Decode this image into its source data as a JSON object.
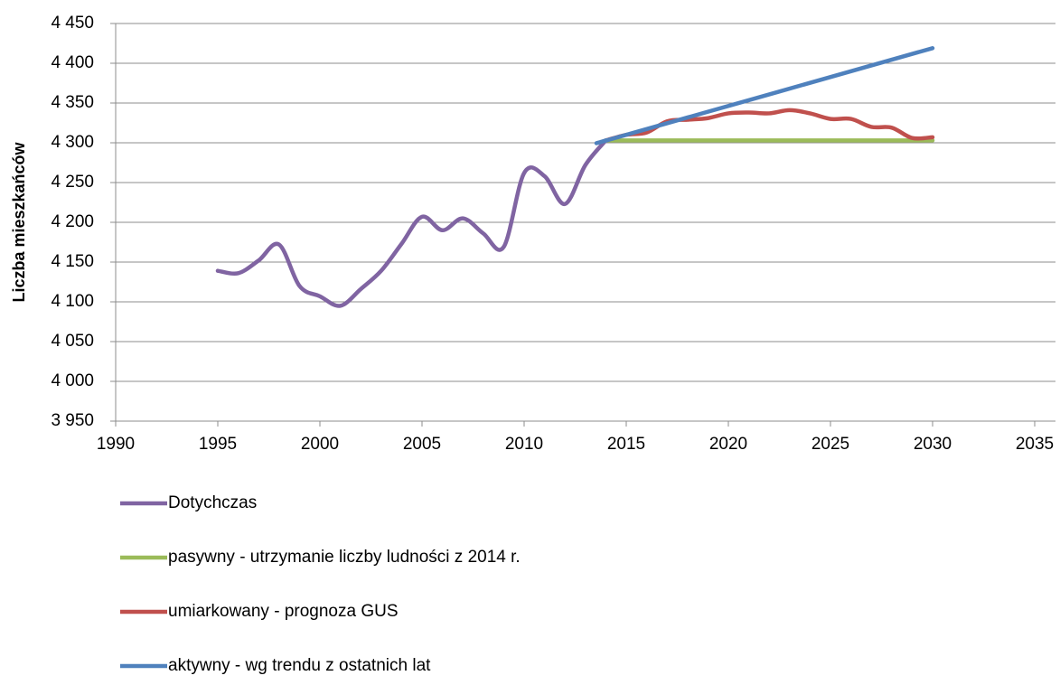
{
  "chart_data": {
    "type": "line",
    "y_label": "Liczba mieszkańców",
    "xlim": [
      1990,
      2035
    ],
    "xticks": [
      1990,
      1995,
      2000,
      2005,
      2010,
      2015,
      2020,
      2025,
      2030,
      2035
    ],
    "ylim": [
      3950,
      4450
    ],
    "yticks": [
      {
        "value": 3950,
        "label": "3 950"
      },
      {
        "value": 4000,
        "label": "4 000"
      },
      {
        "value": 4050,
        "label": "4 050"
      },
      {
        "value": 4100,
        "label": "4 100"
      },
      {
        "value": 4150,
        "label": "4 150"
      },
      {
        "value": 4200,
        "label": "4 200"
      },
      {
        "value": 4250,
        "label": "4 250"
      },
      {
        "value": 4300,
        "label": "4 300"
      },
      {
        "value": 4350,
        "label": "4 350"
      },
      {
        "value": 4400,
        "label": "4 400"
      },
      {
        "value": 4450,
        "label": "4 450"
      }
    ],
    "grid": true,
    "legend": "bottom",
    "series": [
      {
        "name": "Dotychczas",
        "color": "#8064a2",
        "x": [
          1995,
          1996,
          1997,
          1998,
          1999,
          2000,
          2001,
          2002,
          2003,
          2004,
          2005,
          2006,
          2007,
          2008,
          2009,
          2010,
          2011,
          2012,
          2013,
          2014
        ],
        "values": [
          4139,
          4136,
          4152,
          4172,
          4120,
          4107,
          4095,
          4116,
          4139,
          4173,
          4207,
          4190,
          4205,
          4186,
          4169,
          4262,
          4258,
          4223,
          4272,
          4303
        ]
      },
      {
        "name": "pasywny - utrzymanie liczby ludności z 2014 r.",
        "color": "#9bbb59",
        "x": [
          2014,
          2030
        ],
        "values": [
          4303,
          4303
        ]
      },
      {
        "name": "umiarkowany - prognoza GUS",
        "color": "#c0504d",
        "x": [
          2014,
          2015,
          2016,
          2017,
          2018,
          2019,
          2020,
          2021,
          2022,
          2023,
          2024,
          2025,
          2026,
          2027,
          2028,
          2029,
          2030
        ],
        "values": [
          4303,
          4310,
          4313,
          4327,
          4329,
          4331,
          4337,
          4338,
          4337,
          4341,
          4337,
          4330,
          4330,
          4320,
          4319,
          4306,
          4307
        ]
      },
      {
        "name": "aktywny - wg trendu z ostatnich lat",
        "color": "#4f81bd",
        "x": [
          2014,
          2015,
          2030
        ],
        "values": [
          4303,
          4310,
          4419
        ]
      }
    ]
  }
}
